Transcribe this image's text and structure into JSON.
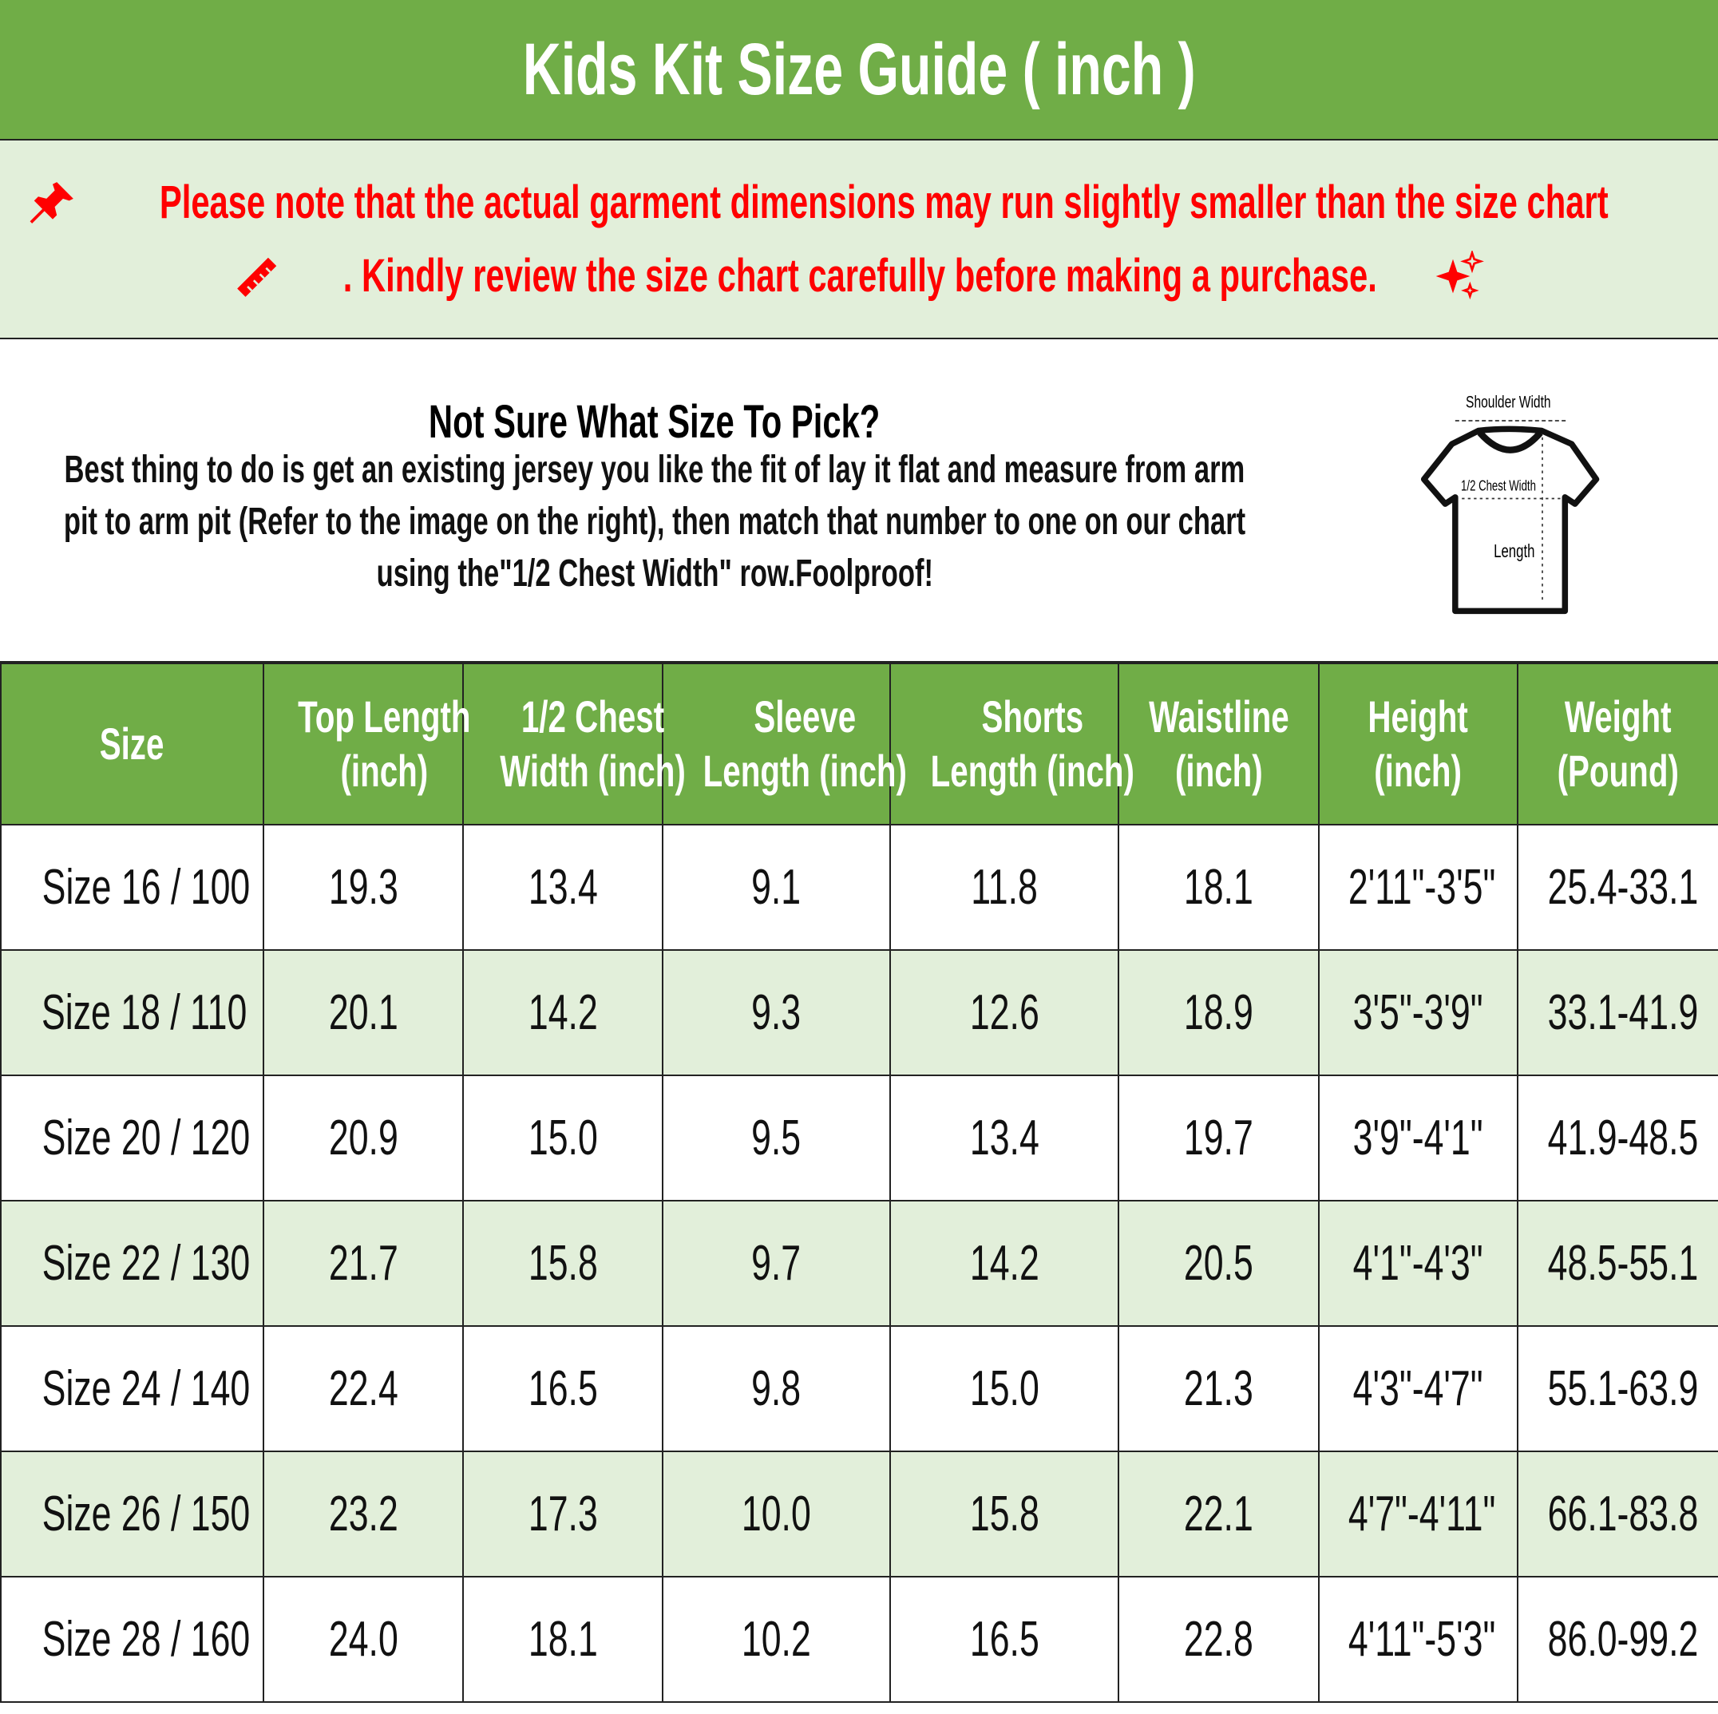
{
  "title": "Kids Kit Size Guide ( inch )",
  "note": {
    "line1": "Please note that the actual garment dimensions may run slightly smaller than the size chart",
    "line2": ". Kindly review the size chart carefully before making a purchase.",
    "icons": [
      "pushpin-icon",
      "ruler-icon",
      "sparkles-icon"
    ],
    "color": "#ff0000"
  },
  "info": {
    "heading": "Not Sure What Size To Pick?",
    "lines": [
      "Best thing to do is get an existing jersey you like the fit of lay it flat and measure from arm",
      "pit to arm pit (Refer to the image on the right), then match that number to one on our chart",
      "using the\"1/2 Chest Width\" row.Foolproof!"
    ]
  },
  "diagram": {
    "shoulder": "Shoulder Width",
    "chest": "1/2 Chest Width",
    "length": "Length"
  },
  "colors": {
    "header_green": "#70ad47",
    "light_green": "#e2efda"
  },
  "table": {
    "headers": [
      [
        "Size"
      ],
      [
        "Top Length",
        "(inch)"
      ],
      [
        "1/2 Chest",
        "Width (inch)"
      ],
      [
        "Sleeve",
        "Length (inch)"
      ],
      [
        "Shorts",
        "Length (inch)"
      ],
      [
        "Waistline",
        "(inch)"
      ],
      [
        "Height",
        "(inch)"
      ],
      [
        "Weight",
        "(Pound)"
      ]
    ],
    "rows": [
      [
        "Size 16 / 100",
        "19.3",
        "13.4",
        "9.1",
        "11.8",
        "18.1",
        "2'11\"-3'5\"",
        "25.4-33.1"
      ],
      [
        "Size 18 / 110",
        "20.1",
        "14.2",
        "9.3",
        "12.6",
        "18.9",
        "3'5\"-3'9\"",
        "33.1-41.9"
      ],
      [
        "Size 20 / 120",
        "20.9",
        "15.0",
        "9.5",
        "13.4",
        "19.7",
        "3'9\"-4'1\"",
        "41.9-48.5"
      ],
      [
        "Size 22 / 130",
        "21.7",
        "15.8",
        "9.7",
        "14.2",
        "20.5",
        "4'1\"-4'3\"",
        "48.5-55.1"
      ],
      [
        "Size 24 / 140",
        "22.4",
        "16.5",
        "9.8",
        "15.0",
        "21.3",
        "4'3\"-4'7\"",
        "55.1-63.9"
      ],
      [
        "Size 26 / 150",
        "23.2",
        "17.3",
        "10.0",
        "15.8",
        "22.1",
        "4'7\"-4'11\"",
        "66.1-83.8"
      ],
      [
        "Size 28 / 160",
        "24.0",
        "18.1",
        "10.2",
        "16.5",
        "22.8",
        "4'11\"-5'3\"",
        "86.0-99.2"
      ]
    ]
  }
}
